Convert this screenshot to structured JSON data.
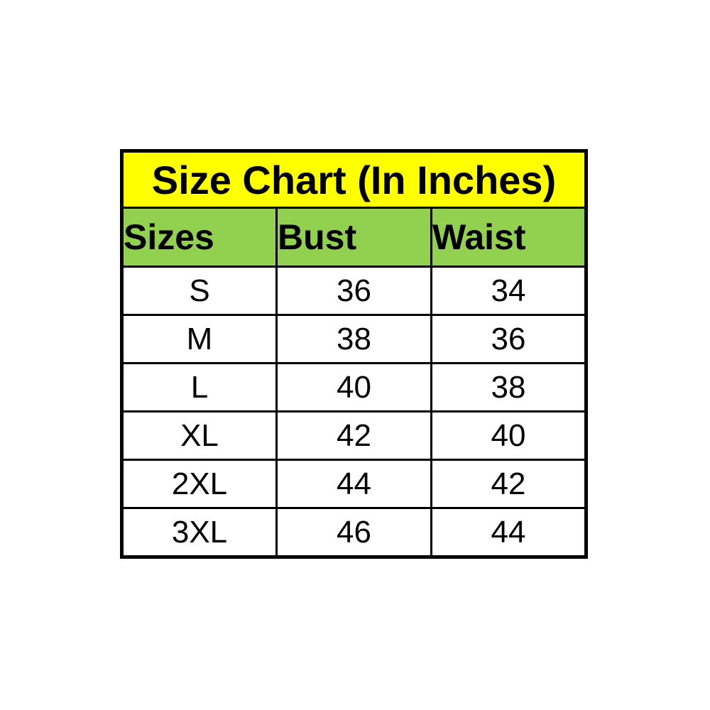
{
  "table": {
    "title": "Size Chart (In Inches)",
    "columns": [
      {
        "key": "size",
        "label": "Sizes"
      },
      {
        "key": "bust",
        "label": "Bust"
      },
      {
        "key": "waist",
        "label": "Waist"
      }
    ],
    "rows": [
      {
        "size": "S",
        "bust": "36",
        "waist": "34"
      },
      {
        "size": "M",
        "bust": "38",
        "waist": "36"
      },
      {
        "size": "L",
        "bust": "40",
        "waist": "38"
      },
      {
        "size": "XL",
        "bust": "42",
        "waist": "40"
      },
      {
        "size": "2XL",
        "bust": "44",
        "waist": "42"
      },
      {
        "size": "3XL",
        "bust": "46",
        "waist": "44"
      }
    ],
    "colors": {
      "title_background": "#ffff00",
      "header_background": "#92d050",
      "row_background": "#ffffff",
      "border": "#000000",
      "text": "#000000",
      "page_background": "#ffffff"
    }
  },
  "chart_data": {
    "type": "table",
    "title": "Size Chart (In Inches)",
    "columns": [
      "Sizes",
      "Bust",
      "Waist"
    ],
    "rows": [
      [
        "S",
        36,
        34
      ],
      [
        "M",
        38,
        36
      ],
      [
        "L",
        40,
        38
      ],
      [
        "XL",
        42,
        40
      ],
      [
        "2XL",
        44,
        42
      ],
      [
        "3XL",
        46,
        44
      ]
    ],
    "units": "inches"
  }
}
